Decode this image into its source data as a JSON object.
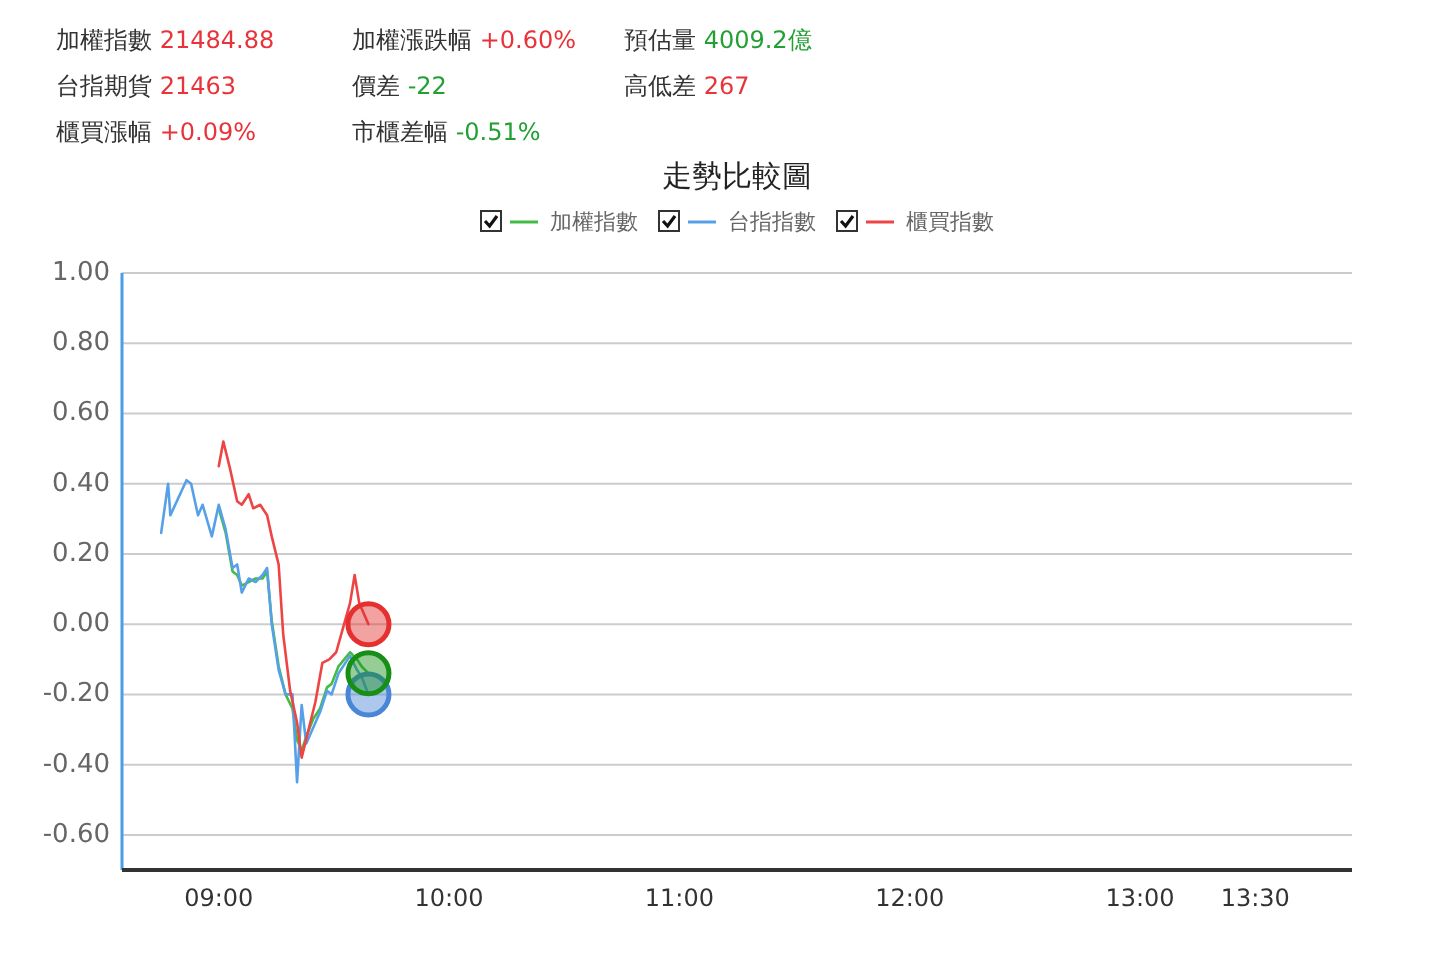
{
  "chart_data": {
    "type": "line",
    "title": "走勢比較圖",
    "annotations": [
      "加權指數 21484.88",
      "加權漲跌幅 +0.60%",
      "預估量 4009.2億",
      "台指期貨 21463",
      "價差 -22",
      "高低差 267",
      "櫃買漲幅 +0.09%",
      "市櫃差幅 -0.51%"
    ],
    "xlim": [
      8.58,
      13.92
    ],
    "xticks": [
      {
        "value": 9,
        "label": "09:00"
      },
      {
        "value": 10,
        "label": "10:00"
      },
      {
        "value": 11,
        "label": "11:00"
      },
      {
        "value": 12,
        "label": "12:00"
      },
      {
        "value": 13,
        "label": "13:00"
      },
      {
        "value": 13.5,
        "label": "13:30"
      }
    ],
    "ylim": [
      -0.7,
      1.0
    ],
    "yticks": [
      {
        "value": -0.6,
        "label": "-0.60"
      },
      {
        "value": -0.4,
        "label": "-0.40"
      },
      {
        "value": -0.2,
        "label": "-0.20"
      },
      {
        "value": 0,
        "label": "0.00"
      },
      {
        "value": 0.2,
        "label": "0.20"
      },
      {
        "value": 0.4,
        "label": "0.40"
      },
      {
        "value": 0.6,
        "label": "0.60"
      },
      {
        "value": 0.8,
        "label": "0.80"
      },
      {
        "value": 1.0,
        "label": "1.00"
      }
    ],
    "grid": "y",
    "legend": "top",
    "line_style": "solid",
    "series": [
      {
        "name": "加權指數",
        "color": "#44bb44",
        "x": [
          9.0,
          9.03,
          9.06,
          9.08,
          9.1,
          9.13,
          9.16,
          9.19,
          9.21,
          9.23,
          9.26,
          9.29,
          9.32,
          9.34,
          9.36,
          9.38,
          9.41,
          9.44,
          9.47,
          9.49,
          9.52,
          9.57,
          9.6,
          9.62,
          9.65
        ],
        "values": [
          0.33,
          0.26,
          0.15,
          0.14,
          0.11,
          0.12,
          0.13,
          0.13,
          0.15,
          0.01,
          -0.12,
          -0.2,
          -0.24,
          -0.33,
          -0.36,
          -0.32,
          -0.27,
          -0.24,
          -0.18,
          -0.17,
          -0.12,
          -0.08,
          -0.1,
          -0.12,
          -0.14
        ]
      },
      {
        "name": "台指指數",
        "color": "#55a0e8",
        "x": [
          8.75,
          8.78,
          8.79,
          8.86,
          8.88,
          8.91,
          8.93,
          8.97,
          9.0,
          9.03,
          9.06,
          9.08,
          9.1,
          9.13,
          9.16,
          9.19,
          9.21,
          9.23,
          9.26,
          9.29,
          9.32,
          9.34,
          9.36,
          9.38,
          9.44,
          9.47,
          9.49,
          9.52,
          9.57,
          9.6,
          9.62,
          9.65
        ],
        "values": [
          0.26,
          0.4,
          0.31,
          0.41,
          0.4,
          0.31,
          0.34,
          0.25,
          0.34,
          0.27,
          0.16,
          0.17,
          0.09,
          0.13,
          0.12,
          0.14,
          0.16,
          0.0,
          -0.13,
          -0.2,
          -0.2,
          -0.45,
          -0.23,
          -0.34,
          -0.25,
          -0.19,
          -0.2,
          -0.14,
          -0.09,
          -0.13,
          -0.15,
          -0.2
        ]
      },
      {
        "name": "櫃買指數",
        "color": "#ee4444",
        "x": [
          9.0,
          9.02,
          9.05,
          9.08,
          9.1,
          9.13,
          9.15,
          9.18,
          9.21,
          9.23,
          9.26,
          9.28,
          9.31,
          9.34,
          9.36,
          9.39,
          9.42,
          9.45,
          9.48,
          9.51,
          9.54,
          9.57,
          9.59,
          9.61,
          9.65
        ],
        "values": [
          0.45,
          0.52,
          0.44,
          0.35,
          0.34,
          0.37,
          0.33,
          0.34,
          0.31,
          0.25,
          0.17,
          -0.03,
          -0.19,
          -0.28,
          -0.38,
          -0.3,
          -0.22,
          -0.11,
          -0.1,
          -0.08,
          -0.01,
          0.06,
          0.14,
          0.06,
          0.0
        ]
      },
      {
        "type": "scatter",
        "marker": "circle",
        "color": "#4a86d8",
        "x": [
          9.65
        ],
        "values": [
          -0.2
        ]
      },
      {
        "type": "scatter",
        "marker": "circle",
        "color": "#178f17",
        "x": [
          9.65
        ],
        "values": [
          -0.14
        ]
      },
      {
        "type": "scatter",
        "marker": "circle",
        "color": "#e53030",
        "x": [
          9.65
        ],
        "values": [
          0.0
        ]
      }
    ]
  }
}
